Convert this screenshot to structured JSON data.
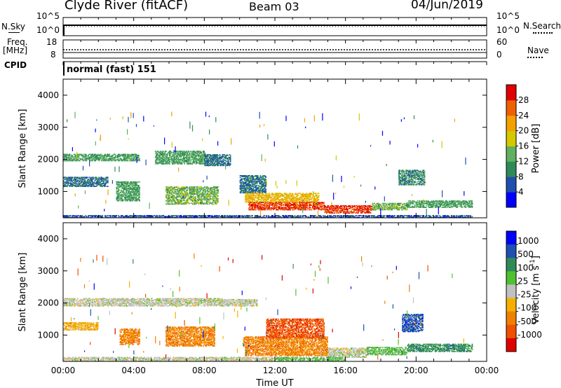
{
  "header": {
    "station": "Clyde River (fitACF)",
    "beam": "Beam 03",
    "date": "04/Jun/2019"
  },
  "top_panels": {
    "nsky": {
      "left_label": "N.Sky",
      "right_label": "N.Search",
      "left_ticks": [
        "10^5",
        "10^0"
      ],
      "right_ticks": [
        "10^5",
        "10^0"
      ]
    },
    "freq": {
      "left_label_1": "Freq.",
      "left_label_2": "[MHz]",
      "right_label": "Nave",
      "left_ticks": [
        "18",
        "8"
      ],
      "right_ticks": [
        "60",
        "0"
      ]
    },
    "cpid": {
      "label": "CPID",
      "mode_text": "normal (fast) 151"
    }
  },
  "colors": {
    "power_scale": [
      "#0000ff",
      "#1f4fb0",
      "#2e8b57",
      "#5fb060",
      "#d4c800",
      "#f4a000",
      "#f06000",
      "#e00000"
    ],
    "velocity_scale": [
      "#e00000",
      "#f05000",
      "#f08000",
      "#f4b000",
      "#c0c0c0",
      "#50c030",
      "#2e8b57",
      "#1f4fb0",
      "#0000ff"
    ],
    "ground_scatter": "#b8b8b8"
  },
  "chart_data": [
    {
      "type": "heatmap",
      "name": "power",
      "xlabel": "",
      "ylabel": "Slant Range [km]",
      "x_unit": "hours UT",
      "y_unit": "km",
      "xlim": [
        0,
        24
      ],
      "ylim": [
        180,
        4500
      ],
      "yticks": [
        1000,
        2000,
        3000,
        4000
      ],
      "colorbar": {
        "label": "Power [dB]",
        "range": [
          0,
          32
        ],
        "ticks": [
          4,
          8,
          12,
          16,
          20,
          24,
          28
        ]
      },
      "echo_regions": [
        {
          "t0": 0.0,
          "t1": 4.3,
          "r0": 1950,
          "r1": 2150,
          "level": 12
        },
        {
          "t0": 5.2,
          "t1": 8.0,
          "r0": 1850,
          "r1": 2250,
          "level": 12
        },
        {
          "t0": 8.0,
          "t1": 9.5,
          "r0": 1800,
          "r1": 2150,
          "level": 8
        },
        {
          "t0": 0.0,
          "t1": 2.5,
          "r0": 1150,
          "r1": 1450,
          "level": 8
        },
        {
          "t0": 3.0,
          "t1": 4.3,
          "r0": 700,
          "r1": 1300,
          "level": 12
        },
        {
          "t0": 5.8,
          "t1": 8.8,
          "r0": 600,
          "r1": 1150,
          "level": 14
        },
        {
          "t0": 10.0,
          "t1": 11.5,
          "r0": 950,
          "r1": 1500,
          "level": 8
        },
        {
          "t0": 10.3,
          "t1": 14.5,
          "r0": 650,
          "r1": 950,
          "level": 20
        },
        {
          "t0": 10.5,
          "t1": 14.8,
          "r0": 420,
          "r1": 650,
          "level": 28
        },
        {
          "t0": 14.8,
          "t1": 17.5,
          "r0": 320,
          "r1": 560,
          "level": 28
        },
        {
          "t0": 17.5,
          "t1": 19.5,
          "r0": 420,
          "r1": 620,
          "level": 14
        },
        {
          "t0": 19.5,
          "t1": 23.2,
          "r0": 500,
          "r1": 720,
          "level": 12
        },
        {
          "t0": 19.0,
          "t1": 20.5,
          "r0": 1200,
          "r1": 1650,
          "level": 10
        },
        {
          "t0": 0.0,
          "t1": 23.2,
          "r0": 180,
          "r1": 260,
          "level": 6
        }
      ]
    },
    {
      "type": "heatmap",
      "name": "velocity",
      "xlabel": "Time UT",
      "ylabel": "Slant Range [km]",
      "x_unit": "hours UT",
      "y_unit": "km",
      "xlim": [
        0,
        24
      ],
      "ylim": [
        180,
        4500
      ],
      "xticks": [
        "00:00",
        "04:00",
        "08:00",
        "12:00",
        "16:00",
        "20:00",
        "00:00"
      ],
      "yticks": [
        1000,
        2000,
        3000,
        4000
      ],
      "colorbar": {
        "label": "Velocity [m s^-1]",
        "tick_labels": [
          "1000",
          "500",
          "100",
          "25",
          "-25",
          "-100",
          "-500",
          "-1000"
        ]
      },
      "echo_regions": [
        {
          "t0": 0.0,
          "t1": 9.0,
          "r0": 1900,
          "r1": 2150,
          "level": 4
        },
        {
          "t0": 9.0,
          "t1": 11.0,
          "r0": 1900,
          "r1": 2100,
          "level": 4
        },
        {
          "t0": 0.0,
          "t1": 2.0,
          "r0": 1150,
          "r1": 1400,
          "level": 3
        },
        {
          "t0": 3.2,
          "t1": 4.3,
          "r0": 700,
          "r1": 1200,
          "level": 2
        },
        {
          "t0": 5.8,
          "t1": 8.6,
          "r0": 650,
          "r1": 1250,
          "level": 2
        },
        {
          "t0": 10.2,
          "t1": 15.0,
          "r0": 650,
          "r1": 950,
          "level": 2
        },
        {
          "t0": 11.5,
          "t1": 14.8,
          "r0": 900,
          "r1": 1500,
          "level": 1
        },
        {
          "t0": 10.3,
          "t1": 15.0,
          "r0": 350,
          "r1": 650,
          "level": 2
        },
        {
          "t0": 15.0,
          "t1": 17.2,
          "r0": 300,
          "r1": 600,
          "level": 4
        },
        {
          "t0": 17.2,
          "t1": 19.5,
          "r0": 380,
          "r1": 620,
          "level": 5
        },
        {
          "t0": 19.5,
          "t1": 23.2,
          "r0": 480,
          "r1": 720,
          "level": 6
        },
        {
          "t0": 19.2,
          "t1": 20.4,
          "r0": 1100,
          "r1": 1650,
          "level": 7
        },
        {
          "t0": 0.0,
          "t1": 12.0,
          "r0": 180,
          "r1": 300,
          "level": 4
        },
        {
          "t0": 12.0,
          "t1": 16.0,
          "r0": 180,
          "r1": 300,
          "level": 5
        }
      ]
    }
  ]
}
